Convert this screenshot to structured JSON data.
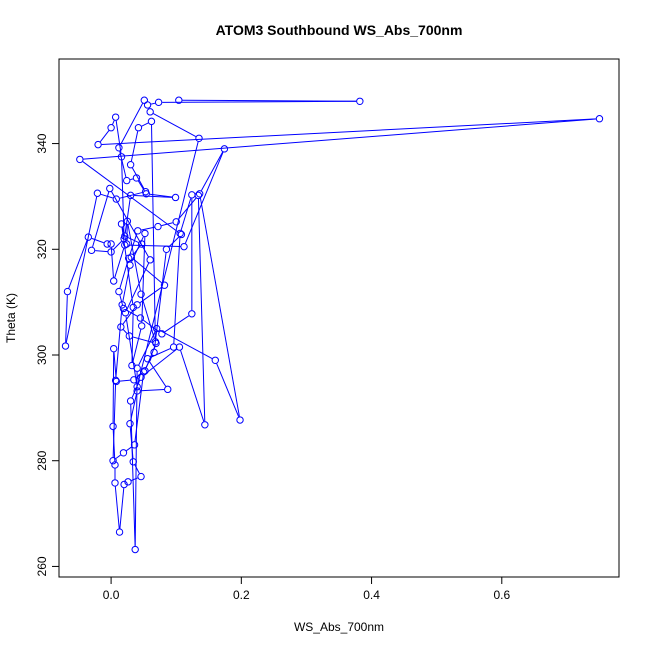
{
  "chart_data": {
    "type": "line",
    "title": "ATOM3 Southbound WS_Abs_700nm",
    "xlabel": "WS_Abs_700nm",
    "ylabel": "Theta (K)",
    "xlim": [
      -0.08,
      0.78
    ],
    "ylim": [
      258,
      356
    ],
    "x_ticks": [
      0.0,
      0.2,
      0.4,
      0.6
    ],
    "x_tick_labels": [
      "0.0",
      "0.2",
      "0.4",
      "0.6"
    ],
    "y_ticks": [
      260,
      280,
      300,
      320,
      340
    ],
    "y_tick_labels": [
      "260",
      "280",
      "300",
      "320",
      "340"
    ],
    "grid": false,
    "legend": "none",
    "marker": "open-circle",
    "color": "#0000ff",
    "series": [
      {
        "points": [
          [
            0.104,
            348.2
          ],
          [
            0.382,
            348.0
          ],
          [
            0.073,
            347.8
          ],
          [
            0.056,
            347.3
          ],
          [
            0.051,
            348.2
          ],
          [
            0.012,
            339.2
          ],
          [
            0.024,
            333.0
          ],
          [
            0.039,
            333.5
          ],
          [
            0.054,
            330.5
          ],
          [
            0.099,
            329.8
          ],
          [
            0.03,
            330.2
          ],
          [
            0.021,
            322.5
          ],
          [
            0.047,
            321.0
          ],
          [
            0.031,
            318.5
          ],
          [
            0.082,
            313.2
          ],
          [
            0.04,
            309.5
          ],
          [
            0.015,
            305.3
          ],
          [
            0.028,
            303.6
          ],
          [
            0.069,
            302.2
          ],
          [
            0.052,
            297.0
          ],
          [
            0.035,
            295.3
          ],
          [
            0.008,
            295.0
          ],
          [
            0.004,
            301.2
          ],
          [
            0.003,
            286.5
          ],
          [
            0.006,
            279.2
          ],
          [
            0.006,
            275.8
          ],
          [
            0.013,
            266.5
          ],
          [
            0.02,
            275.5
          ],
          [
            0.026,
            276.0
          ],
          [
            0.046,
            277.0
          ],
          [
            0.034,
            279.8
          ],
          [
            0.029,
            287.0
          ],
          [
            0.04,
            293.2
          ],
          [
            0.087,
            293.5
          ],
          [
            0.056,
            299.3
          ],
          [
            0.096,
            301.5
          ],
          [
            0.106,
            323.0
          ],
          [
            0.124,
            330.3
          ],
          [
            0.124,
            307.8
          ],
          [
            0.078,
            304.0
          ],
          [
            0.045,
            307.0
          ],
          [
            0.019,
            308.8
          ],
          [
            0.012,
            312.0
          ],
          [
            0.027,
            318.3
          ],
          [
            0.041,
            323.5
          ],
          [
            0.072,
            324.3
          ],
          [
            0.1,
            325.2
          ],
          [
            0.134,
            330.2
          ],
          [
            0.144,
            286.8
          ],
          [
            0.105,
            301.5
          ],
          [
            0.046,
            295.8
          ],
          [
            0.03,
            291.3
          ],
          [
            0.037,
            263.2
          ],
          [
            0.04,
            297.5
          ],
          [
            0.07,
            305.0
          ],
          [
            0.16,
            299.0
          ],
          [
            0.198,
            287.7
          ],
          [
            0.136,
            330.5
          ],
          [
            0.174,
            339.0
          ],
          [
            0.112,
            320.5
          ],
          [
            0.021,
            320.8
          ],
          [
            0.004,
            314.0
          ],
          [
            0.0,
            321.0
          ],
          [
            -0.006,
            321.0
          ],
          [
            -0.035,
            322.3
          ],
          [
            -0.067,
            312.0
          ],
          [
            -0.07,
            301.7
          ],
          [
            -0.021,
            330.6
          ],
          [
            0.008,
            329.5
          ],
          [
            0.053,
            330.9
          ],
          [
            0.03,
            336.0
          ],
          [
            0.042,
            343.0
          ],
          [
            0.062,
            344.2
          ],
          [
            0.068,
            302.5
          ],
          [
            0.046,
            311.5
          ],
          [
            0.025,
            325.3
          ],
          [
            0.024,
            321.0
          ],
          [
            0.016,
            324.8
          ],
          [
            0.034,
            309.0
          ],
          [
            0.032,
            298.0
          ],
          [
            0.047,
            305.5
          ],
          [
            0.052,
            323.0
          ],
          [
            0.029,
            317.0
          ],
          [
            0.017,
            309.5
          ],
          [
            0.007,
            295.2
          ],
          [
            0.003,
            280.0
          ],
          [
            0.019,
            281.5
          ],
          [
            0.036,
            283.0
          ],
          [
            0.05,
            296.8
          ],
          [
            0.066,
            300.5
          ],
          [
            0.085,
            320.0
          ],
          [
            0.108,
            322.8
          ],
          [
            -0.048,
            337.0
          ],
          [
            0.75,
            344.7
          ],
          [
            -0.02,
            339.8
          ],
          [
            0.0,
            343.0
          ],
          [
            0.007,
            345.0
          ],
          [
            0.016,
            337.5
          ],
          [
            0.02,
            322.0
          ],
          [
            0.0,
            319.5
          ],
          [
            -0.03,
            319.8
          ],
          [
            -0.002,
            331.5
          ],
          [
            0.06,
            318.0
          ],
          [
            0.022,
            308.0
          ],
          [
            0.04,
            294.0
          ],
          [
            0.135,
            341.0
          ],
          [
            0.06,
            346.0
          ]
        ]
      }
    ]
  }
}
